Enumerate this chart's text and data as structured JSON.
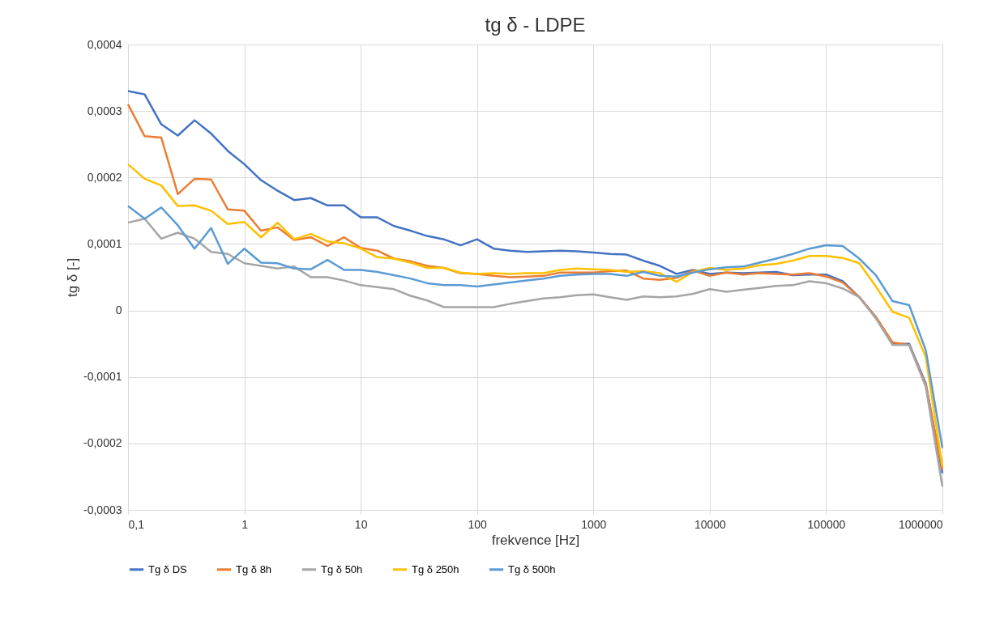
{
  "chart_data": {
    "type": "line",
    "title": "tg δ - LDPE",
    "xlabel": "frekvence [Hz]",
    "ylabel": "tg δ [-]",
    "log": "x",
    "grid": true,
    "legend": "bottom",
    "marker": "none",
    "line_style": "solid",
    "x": [
      0.1,
      0.139,
      0.193,
      0.268,
      0.373,
      0.518,
      0.72,
      1,
      1.39,
      1.93,
      2.68,
      3.73,
      5.18,
      7.2,
      10,
      13.9,
      19.3,
      26.8,
      37.3,
      51.8,
      72,
      100,
      139,
      193,
      268,
      373,
      518,
      720,
      1000,
      1390,
      1930,
      2680,
      3730,
      5180,
      7200,
      10000,
      13900,
      19300,
      26800,
      37300,
      51800,
      72000,
      100000,
      139000,
      193000,
      268000,
      373000,
      518000,
      720000,
      1000000
    ],
    "xlim": [
      0.1,
      1000000
    ],
    "xticks": [
      {
        "value": 0.1,
        "label": "0,1"
      },
      1,
      10,
      100,
      1000,
      10000,
      100000,
      1000000
    ],
    "ylim": [
      -0.0003,
      0.0004
    ],
    "yticks": [
      {
        "value": -0.0003,
        "label": "-0,0003"
      },
      {
        "value": -0.0002,
        "label": "-0,0002"
      },
      {
        "value": -0.0001,
        "label": "-0,0001"
      },
      0,
      {
        "value": 0.0001,
        "label": "0,0001"
      },
      {
        "value": 0.0002,
        "label": "0,0002"
      },
      {
        "value": 0.0003,
        "label": "0,0003"
      },
      {
        "value": 0.0004,
        "label": "0,0004"
      }
    ],
    "series": [
      {
        "name": "Tg δ DS",
        "color": "#4472c4",
        "values": [
          0.00033,
          0.000325,
          0.00028,
          0.000263,
          0.000286,
          0.000266,
          0.00024,
          0.00022,
          0.000196,
          0.00018,
          0.000166,
          0.000169,
          0.000158,
          0.000158,
          0.00014,
          0.00014,
          0.000127,
          0.00012,
          0.000112,
          0.000107,
          9.8e-05,
          0.000107,
          9.3e-05,
          9e-05,
          8.8e-05,
          8.9e-05,
          9e-05,
          8.9e-05,
          8.7e-05,
          8.5e-05,
          8.4e-05,
          7.5e-05,
          6.7e-05,
          5.5e-05,
          6.1e-05,
          5.5e-05,
          5.7e-05,
          5.6e-05,
          5.7e-05,
          5.8e-05,
          5.3e-05,
          5.4e-05,
          5.4e-05,
          4.4e-05,
          2e-05,
          -1e-05,
          -5e-05,
          -5e-05,
          -0.00011,
          -0.000245
        ]
      },
      {
        "name": "Tg δ 8h",
        "color": "#ed7d31",
        "values": [
          0.00031,
          0.000262,
          0.00026,
          0.000175,
          0.000198,
          0.000197,
          0.000152,
          0.00015,
          0.00012,
          0.000125,
          0.000106,
          0.00011,
          9.7e-05,
          0.00011,
          9.4e-05,
          9e-05,
          7.8e-05,
          7.4e-05,
          6.7e-05,
          6.4e-05,
          5.6e-05,
          5.5e-05,
          5.2e-05,
          5e-05,
          5.1e-05,
          5.2e-05,
          5.7e-05,
          5.7e-05,
          5.7e-05,
          5.9e-05,
          6e-05,
          4.8e-05,
          4.6e-05,
          4.9e-05,
          6e-05,
          5.2e-05,
          5.7e-05,
          5.4e-05,
          5.6e-05,
          5.5e-05,
          5.4e-05,
          5.6e-05,
          5.1e-05,
          4.2e-05,
          2e-05,
          -1e-05,
          -4.8e-05,
          -5.2e-05,
          -0.000112,
          -0.00024
        ]
      },
      {
        "name": "Tg δ 50h",
        "color": "#a5a5a5",
        "values": [
          0.000132,
          0.000138,
          0.000108,
          0.000117,
          0.000108,
          8.8e-05,
          8.5e-05,
          7.1e-05,
          6.7e-05,
          6.3e-05,
          6.6e-05,
          5e-05,
          5e-05,
          4.5e-05,
          3.8e-05,
          3.5e-05,
          3.2e-05,
          2.2e-05,
          1.5e-05,
          5e-06,
          5e-06,
          5e-06,
          5e-06,
          1e-05,
          1.4e-05,
          1.8e-05,
          2e-05,
          2.3e-05,
          2.4e-05,
          2e-05,
          1.6e-05,
          2.1e-05,
          2e-05,
          2.1e-05,
          2.5e-05,
          3.2e-05,
          2.8e-05,
          3.1e-05,
          3.4e-05,
          3.7e-05,
          3.8e-05,
          4.4e-05,
          4.1e-05,
          3.3e-05,
          2e-05,
          -1.2e-05,
          -5.2e-05,
          -5.2e-05,
          -0.000115,
          -0.000265
        ]
      },
      {
        "name": "Tg δ 250h",
        "color": "#ffc000",
        "values": [
          0.00022,
          0.000198,
          0.000188,
          0.000157,
          0.000158,
          0.00015,
          0.00013,
          0.000133,
          0.00011,
          0.000132,
          0.000107,
          0.000115,
          0.000104,
          0.000101,
          9.3e-05,
          8e-05,
          7.8e-05,
          7.2e-05,
          6.4e-05,
          6.4e-05,
          5.7e-05,
          5.5e-05,
          5.6e-05,
          5.5e-05,
          5.6e-05,
          5.6e-05,
          6.1e-05,
          6.3e-05,
          6.2e-05,
          6.1e-05,
          5.8e-05,
          5.9e-05,
          5.6e-05,
          4.3e-05,
          5.8e-05,
          6.4e-05,
          6.1e-05,
          6.3e-05,
          6.8e-05,
          7e-05,
          7.5e-05,
          8.2e-05,
          8.2e-05,
          7.9e-05,
          7.1e-05,
          3.6e-05,
          -2e-06,
          -1.1e-05,
          -7e-05,
          -0.000235
        ]
      },
      {
        "name": "Tg δ 500h",
        "color": "#5b9bd5",
        "values": [
          0.000157,
          0.000138,
          0.000155,
          0.000128,
          9.3e-05,
          0.000124,
          7e-05,
          9.3e-05,
          7.2e-05,
          7.1e-05,
          6.3e-05,
          6.2e-05,
          7.6e-05,
          6.1e-05,
          6.1e-05,
          5.8e-05,
          5.3e-05,
          4.8e-05,
          4.1e-05,
          3.8e-05,
          3.8e-05,
          3.6e-05,
          3.9e-05,
          4.2e-05,
          4.5e-05,
          4.8e-05,
          5.2e-05,
          5.4e-05,
          5.5e-05,
          5.5e-05,
          5.2e-05,
          5.8e-05,
          5.2e-05,
          5.1e-05,
          5.7e-05,
          6.2e-05,
          6.5e-05,
          6.6e-05,
          7.2e-05,
          7.8e-05,
          8.5e-05,
          9.3e-05,
          9.8e-05,
          9.7e-05,
          7.8e-05,
          5.3e-05,
          1.4e-05,
          8e-06,
          -6e-05,
          -0.000207
        ]
      }
    ]
  }
}
